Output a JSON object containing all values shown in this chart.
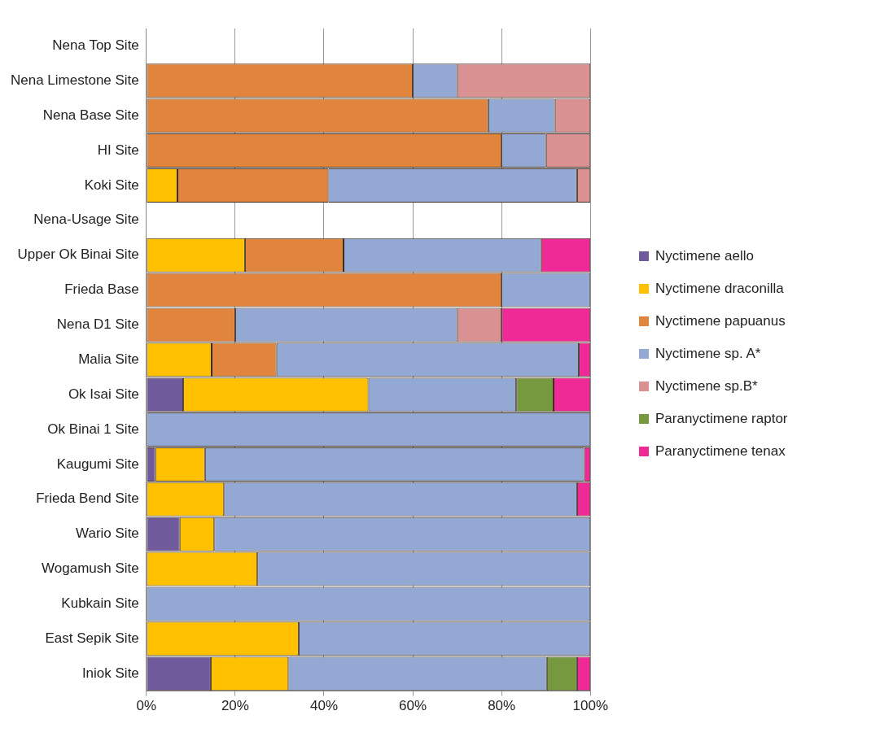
{
  "chart_data": {
    "type": "bar",
    "orientation": "horizontal",
    "stacked": true,
    "categories": [
      "Nena Top Site",
      "Nena Limestone Site",
      "Nena Base Site",
      "HI Site",
      "Koki Site",
      "Nena-Usage Site",
      "Upper Ok Binai Site",
      "Frieda Base",
      "Nena D1 Site",
      "Malia Site",
      "Ok Isai Site",
      "Ok Binai 1 Site",
      "Kaugumi Site",
      "Frieda Bend Site",
      "Wario Site",
      "Wogamush Site",
      "Kubkain Site",
      "East Sepik Site",
      "Iniok Site"
    ],
    "series": [
      {
        "name": "Nyctimene aello",
        "color": "#6f5a9c",
        "values": [
          0,
          0,
          0,
          0,
          0,
          0,
          0,
          0,
          0,
          0,
          8.3,
          0,
          2,
          0,
          7.5,
          0,
          0,
          0,
          14.5
        ]
      },
      {
        "name": "Nyctimene draconilla",
        "color": "#ffc000",
        "values": [
          0,
          0,
          0,
          0,
          7,
          0,
          22.2,
          0,
          0,
          14.7,
          41.7,
          0,
          11.2,
          17.5,
          7.8,
          25,
          0,
          34.3,
          17.5
        ]
      },
      {
        "name": "Nyctimene papuanus",
        "color": "#e0843e",
        "values": [
          0,
          60,
          77,
          80,
          34,
          0,
          22.2,
          80,
          20,
          14.6,
          0,
          0,
          0,
          0,
          0,
          0,
          0,
          0,
          0
        ]
      },
      {
        "name": "Nyctimene sp. A*",
        "color": "#93a9d3",
        "values": [
          0,
          10,
          15,
          10,
          56,
          0,
          44.5,
          20,
          50,
          68.1,
          33.3,
          100,
          85.4,
          79.5,
          84.7,
          75,
          100,
          65.7,
          58.2
        ]
      },
      {
        "name": "Nyctimene sp.B*",
        "color": "#d99192",
        "values": [
          0,
          30,
          8,
          10,
          3,
          0,
          0,
          0,
          10,
          0,
          0,
          0,
          0,
          0,
          0,
          0,
          0,
          0,
          0
        ]
      },
      {
        "name": "Paranyctimene raptor",
        "color": "#76993f",
        "values": [
          0,
          0,
          0,
          0,
          0,
          0,
          0,
          0,
          0,
          0,
          8.4,
          0,
          0,
          0,
          0,
          0,
          0,
          0,
          6.8
        ]
      },
      {
        "name": "Paranyctimene tenax",
        "color": "#ef2a96",
        "values": [
          0,
          0,
          0,
          0,
          0,
          0,
          11.1,
          0,
          20,
          2.6,
          8.3,
          0,
          1.4,
          3,
          0,
          0,
          0,
          0,
          3
        ]
      }
    ],
    "xlim": [
      0,
      100
    ],
    "xticks": [
      {
        "value": 0,
        "label": "0%"
      },
      {
        "value": 20,
        "label": "20%"
      },
      {
        "value": 40,
        "label": "40%"
      },
      {
        "value": 60,
        "label": "60%"
      },
      {
        "value": 80,
        "label": "80%"
      },
      {
        "value": 100,
        "label": "100%"
      }
    ],
    "grid": "x",
    "legend": "right"
  }
}
